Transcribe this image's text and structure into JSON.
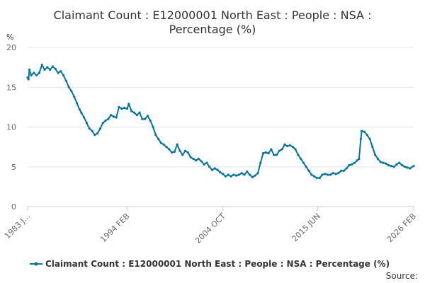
{
  "chart_data": {
    "type": "line",
    "title_line1": "Claimant Count : E12000001 North East : People : NSA :",
    "title_line2": "Percentage (%)",
    "ylabel": "%",
    "xlabel": "",
    "ylim": [
      0,
      20
    ],
    "y_ticks": [
      0,
      5,
      10,
      15,
      20
    ],
    "x_range": [
      1983.0,
      2026.1
    ],
    "x_ticks": [
      {
        "label": "1983 J...",
        "x": 1983.0
      },
      {
        "label": "1994 FEB",
        "x": 1994.1
      },
      {
        "label": "2004 OCT",
        "x": 2004.8
      },
      {
        "label": "2015 JUN",
        "x": 2015.4
      },
      {
        "label": "2026 FEB",
        "x": 2026.1
      }
    ],
    "grid": true,
    "legend": "bottom",
    "series": [
      {
        "name": "Claimant Count : E12000001 North East : People : NSA : Percentage (%)",
        "color": "#0075a8",
        "points": [
          [
            1983.0,
            16.2
          ],
          [
            1983.1,
            16.0
          ],
          [
            1983.2,
            17.2
          ],
          [
            1983.4,
            16.5
          ],
          [
            1983.7,
            16.8
          ],
          [
            1984.0,
            16.5
          ],
          [
            1984.3,
            16.8
          ],
          [
            1984.6,
            17.8
          ],
          [
            1984.9,
            17.2
          ],
          [
            1985.2,
            17.5
          ],
          [
            1985.5,
            17.2
          ],
          [
            1985.8,
            17.6
          ],
          [
            1986.1,
            17.3
          ],
          [
            1986.4,
            16.8
          ],
          [
            1986.7,
            17.0
          ],
          [
            1987.0,
            16.5
          ],
          [
            1987.3,
            15.8
          ],
          [
            1987.6,
            15.0
          ],
          [
            1987.9,
            14.5
          ],
          [
            1988.2,
            13.8
          ],
          [
            1988.5,
            13.0
          ],
          [
            1988.8,
            12.2
          ],
          [
            1989.0,
            11.8
          ],
          [
            1989.3,
            11.2
          ],
          [
            1989.6,
            10.5
          ],
          [
            1989.9,
            9.8
          ],
          [
            1990.2,
            9.5
          ],
          [
            1990.5,
            9.0
          ],
          [
            1990.8,
            9.2
          ],
          [
            1991.1,
            9.8
          ],
          [
            1991.4,
            10.5
          ],
          [
            1991.7,
            10.8
          ],
          [
            1992.0,
            11.0
          ],
          [
            1992.3,
            11.5
          ],
          [
            1992.6,
            11.3
          ],
          [
            1992.9,
            11.2
          ],
          [
            1993.2,
            12.5
          ],
          [
            1993.5,
            12.3
          ],
          [
            1993.8,
            12.4
          ],
          [
            1994.1,
            12.3
          ],
          [
            1994.3,
            12.9
          ],
          [
            1994.6,
            12.0
          ],
          [
            1994.9,
            11.8
          ],
          [
            1995.2,
            11.5
          ],
          [
            1995.5,
            11.8
          ],
          [
            1995.8,
            11.0
          ],
          [
            1996.1,
            11.0
          ],
          [
            1996.4,
            11.4
          ],
          [
            1996.7,
            10.8
          ],
          [
            1997.0,
            10.0
          ],
          [
            1997.3,
            9.0
          ],
          [
            1997.6,
            8.5
          ],
          [
            1997.9,
            8.0
          ],
          [
            1998.2,
            7.8
          ],
          [
            1998.5,
            7.5
          ],
          [
            1998.8,
            7.2
          ],
          [
            1999.1,
            6.8
          ],
          [
            1999.4,
            6.9
          ],
          [
            1999.7,
            7.8
          ],
          [
            2000.0,
            7.0
          ],
          [
            2000.3,
            6.5
          ],
          [
            2000.6,
            7.0
          ],
          [
            2000.9,
            6.8
          ],
          [
            2001.2,
            6.2
          ],
          [
            2001.5,
            6.0
          ],
          [
            2001.8,
            5.8
          ],
          [
            2002.1,
            6.0
          ],
          [
            2002.4,
            5.7
          ],
          [
            2002.7,
            5.3
          ],
          [
            2003.0,
            5.5
          ],
          [
            2003.3,
            5.0
          ],
          [
            2003.6,
            4.6
          ],
          [
            2003.9,
            4.8
          ],
          [
            2004.2,
            4.6
          ],
          [
            2004.5,
            4.3
          ],
          [
            2004.8,
            4.1
          ],
          [
            2005.1,
            3.8
          ],
          [
            2005.4,
            4.0
          ],
          [
            2005.7,
            3.8
          ],
          [
            2006.0,
            4.0
          ],
          [
            2006.3,
            3.9
          ],
          [
            2006.6,
            4.0
          ],
          [
            2006.9,
            4.2
          ],
          [
            2007.2,
            4.0
          ],
          [
            2007.5,
            4.4
          ],
          [
            2007.8,
            4.0
          ],
          [
            2008.1,
            3.7
          ],
          [
            2008.4,
            3.9
          ],
          [
            2008.7,
            4.2
          ],
          [
            2009.0,
            5.5
          ],
          [
            2009.3,
            6.7
          ],
          [
            2009.6,
            6.8
          ],
          [
            2009.9,
            6.7
          ],
          [
            2010.2,
            7.2
          ],
          [
            2010.5,
            6.5
          ],
          [
            2010.8,
            6.5
          ],
          [
            2011.1,
            7.0
          ],
          [
            2011.4,
            7.2
          ],
          [
            2011.7,
            7.8
          ],
          [
            2012.0,
            7.6
          ],
          [
            2012.3,
            7.7
          ],
          [
            2012.6,
            7.5
          ],
          [
            2012.9,
            7.2
          ],
          [
            2013.2,
            6.5
          ],
          [
            2013.5,
            6.0
          ],
          [
            2013.8,
            5.5
          ],
          [
            2014.1,
            5.0
          ],
          [
            2014.4,
            4.5
          ],
          [
            2014.7,
            4.0
          ],
          [
            2015.0,
            3.8
          ],
          [
            2015.3,
            3.6
          ],
          [
            2015.6,
            3.6
          ],
          [
            2015.9,
            4.0
          ],
          [
            2016.2,
            4.1
          ],
          [
            2016.5,
            4.0
          ],
          [
            2016.8,
            4.0
          ],
          [
            2017.1,
            4.2
          ],
          [
            2017.4,
            4.1
          ],
          [
            2017.7,
            4.2
          ],
          [
            2018.0,
            4.5
          ],
          [
            2018.3,
            4.5
          ],
          [
            2018.6,
            4.8
          ],
          [
            2018.9,
            5.2
          ],
          [
            2019.2,
            5.3
          ],
          [
            2019.5,
            5.5
          ],
          [
            2019.8,
            5.8
          ],
          [
            2020.0,
            6.0
          ],
          [
            2020.2,
            8.5
          ],
          [
            2020.3,
            9.5
          ],
          [
            2020.6,
            9.4
          ],
          [
            2020.9,
            9.0
          ],
          [
            2021.2,
            8.5
          ],
          [
            2021.5,
            7.5
          ],
          [
            2021.8,
            6.5
          ],
          [
            2022.1,
            6.0
          ],
          [
            2022.4,
            5.6
          ],
          [
            2022.7,
            5.5
          ],
          [
            2023.0,
            5.4
          ],
          [
            2023.3,
            5.2
          ],
          [
            2023.6,
            5.1
          ],
          [
            2023.9,
            5.0
          ],
          [
            2024.2,
            5.3
          ],
          [
            2024.5,
            5.5
          ],
          [
            2024.8,
            5.2
          ],
          [
            2025.1,
            5.0
          ],
          [
            2025.4,
            4.9
          ],
          [
            2025.7,
            4.8
          ],
          [
            2026.1,
            5.1
          ]
        ]
      }
    ]
  },
  "footer": {
    "source_label": "Source:"
  }
}
